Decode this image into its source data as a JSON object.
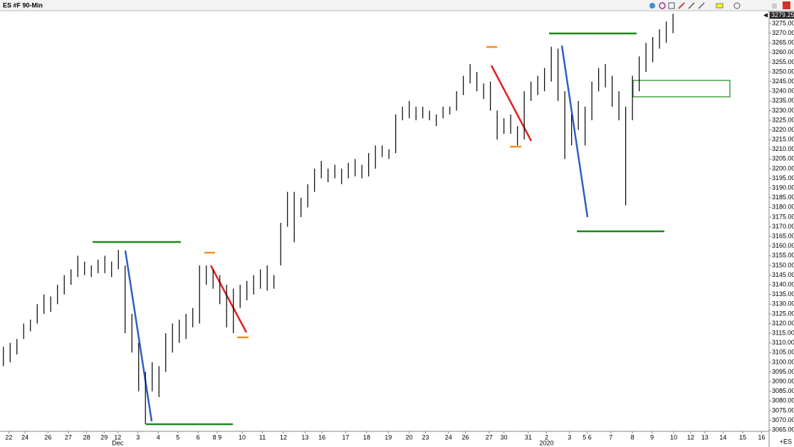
{
  "chart_data": {
    "type": "ohlc",
    "title": "ES #F 90-Min",
    "symbol_tag": "+ES",
    "color": "#000000",
    "grid": false,
    "bars": {
      "high": [
        3108,
        3110,
        3112,
        3120,
        3122,
        3130,
        3135,
        3134,
        3140,
        3145,
        3148,
        3155,
        3152,
        3150,
        3153,
        3155,
        3152,
        3158,
        3150,
        3125,
        3110,
        3095,
        3100,
        3098,
        3115,
        3120,
        3122,
        3125,
        3128,
        3150,
        3150,
        3148,
        3145,
        3140,
        3138,
        3140,
        3142,
        3145,
        3148,
        3150,
        3145,
        3172,
        3188,
        3188,
        3185,
        3192,
        3200,
        3204,
        3200,
        3202,
        3200,
        3203,
        3205,
        3202,
        3208,
        3212,
        3212,
        3210,
        3228,
        3232,
        3235,
        3232,
        3232,
        3230,
        3228,
        3232,
        3232,
        3240,
        3248,
        3254,
        3250,
        3244,
        3245,
        3230,
        3226,
        3228,
        3222,
        3240,
        3245,
        3248,
        3252,
        3263,
        3262,
        3240,
        3228,
        3235,
        3232,
        3245,
        3252,
        3254,
        3248,
        3240,
        3232,
        3248,
        3258,
        3265,
        3268,
        3272,
        3276,
        3280
      ],
      "low": [
        3098,
        3100,
        3104,
        3112,
        3116,
        3120,
        3125,
        3126,
        3130,
        3135,
        3140,
        3144,
        3145,
        3144,
        3146,
        3146,
        3144,
        3148,
        3115,
        3105,
        3085,
        3068,
        3085,
        3082,
        3095,
        3105,
        3110,
        3112,
        3118,
        3120,
        3140,
        3138,
        3130,
        3118,
        3115,
        3128,
        3132,
        3135,
        3138,
        3137,
        3138,
        3150,
        3170,
        3162,
        3175,
        3180,
        3188,
        3195,
        3193,
        3195,
        3192,
        3195,
        3196,
        3195,
        3196,
        3200,
        3206,
        3205,
        3208,
        3225,
        3226,
        3225,
        3226,
        3225,
        3222,
        3226,
        3228,
        3230,
        3238,
        3244,
        3240,
        3236,
        3230,
        3215,
        3218,
        3218,
        3212,
        3215,
        3235,
        3238,
        3240,
        3245,
        3235,
        3205,
        3212,
        3220,
        3212,
        3225,
        3240,
        3242,
        3232,
        3225,
        3181,
        3225,
        3240,
        3250,
        3255,
        3262,
        3265,
        3270
      ]
    },
    "last_price": {
      "value": 3279.25,
      "label": "3279.25"
    },
    "ylim": [
      3064.3,
      3281.25
    ],
    "yticks": [
      {
        "value": 3065,
        "label": "3065.00"
      },
      {
        "value": 3070,
        "label": "3070.00"
      },
      {
        "value": 3075,
        "label": "3075.00"
      },
      {
        "value": 3080,
        "label": "3080.00"
      },
      {
        "value": 3085,
        "label": "3085.00"
      },
      {
        "value": 3090,
        "label": "3090.00"
      },
      {
        "value": 3095,
        "label": "3095.00"
      },
      {
        "value": 3100,
        "label": "3100.00"
      },
      {
        "value": 3105,
        "label": "3105.00"
      },
      {
        "value": 3110,
        "label": "3110.00"
      },
      {
        "value": 3115,
        "label": "3115.00"
      },
      {
        "value": 3120,
        "label": "3120.00"
      },
      {
        "value": 3125,
        "label": "3125.00"
      },
      {
        "value": 3130,
        "label": "3130.00"
      },
      {
        "value": 3135,
        "label": "3135.00"
      },
      {
        "value": 3140,
        "label": "3140.00"
      },
      {
        "value": 3145,
        "label": "3145.00"
      },
      {
        "value": 3150,
        "label": "3150.00"
      },
      {
        "value": 3155,
        "label": "3155.00"
      },
      {
        "value": 3160,
        "label": "3160.00"
      },
      {
        "value": 3165,
        "label": "3165.00"
      },
      {
        "value": 3170,
        "label": "3170.00"
      },
      {
        "value": 3175,
        "label": "3175.00"
      },
      {
        "value": 3180,
        "label": "3180.00"
      },
      {
        "value": 3185,
        "label": "3185.00"
      },
      {
        "value": 3190,
        "label": "3190.00"
      },
      {
        "value": 3195,
        "label": "3195.00"
      },
      {
        "value": 3200,
        "label": "3200.00"
      },
      {
        "value": 3205,
        "label": "3205.00"
      },
      {
        "value": 3210,
        "label": "3210.00"
      },
      {
        "value": 3215,
        "label": "3215.00"
      },
      {
        "value": 3220,
        "label": "3220.00"
      },
      {
        "value": 3225,
        "label": "3225.00"
      },
      {
        "value": 3230,
        "label": "3230.00"
      },
      {
        "value": 3235,
        "label": "3235.00"
      },
      {
        "value": 3240,
        "label": "3240.00"
      },
      {
        "value": 3245,
        "label": "3245.00"
      },
      {
        "value": 3250,
        "label": "3250.00"
      },
      {
        "value": 3255,
        "label": "3255.00"
      },
      {
        "value": 3260,
        "label": "3260.00"
      },
      {
        "value": 3265,
        "label": "3265.00"
      },
      {
        "value": 3270,
        "label": "3270.00"
      },
      {
        "value": 3275,
        "label": "3275.00"
      }
    ],
    "xlim": [
      0,
      113.7
    ],
    "xticks": [
      {
        "value": 1.3,
        "label": "22"
      },
      {
        "value": 3.7,
        "label": "24"
      },
      {
        "value": 7.1,
        "label": "26"
      },
      {
        "value": 10.1,
        "label": "27"
      },
      {
        "value": 12.8,
        "label": "28"
      },
      {
        "value": 15.4,
        "label": "29"
      },
      {
        "value": 17.4,
        "label": "12"
      },
      {
        "value": 20.4,
        "label": "3"
      },
      {
        "value": 23.4,
        "label": "4"
      },
      {
        "value": 26.3,
        "label": "5"
      },
      {
        "value": 29.3,
        "label": "6"
      },
      {
        "value": 32.1,
        "label": "8 9"
      },
      {
        "value": 35.8,
        "label": "10"
      },
      {
        "value": 38.8,
        "label": "11"
      },
      {
        "value": 41.9,
        "label": "12"
      },
      {
        "value": 45.1,
        "label": "13"
      },
      {
        "value": 47.6,
        "label": "16"
      },
      {
        "value": 51.1,
        "label": "17"
      },
      {
        "value": 54.2,
        "label": "18"
      },
      {
        "value": 57.4,
        "label": "19"
      },
      {
        "value": 60.5,
        "label": "20"
      },
      {
        "value": 62.9,
        "label": "23"
      },
      {
        "value": 66.3,
        "label": "24"
      },
      {
        "value": 68.8,
        "label": "26"
      },
      {
        "value": 72.3,
        "label": "27"
      },
      {
        "value": 74.5,
        "label": "30"
      },
      {
        "value": 78.1,
        "label": "31"
      },
      {
        "value": 80.8,
        "label": "2"
      },
      {
        "value": 84.2,
        "label": "3"
      },
      {
        "value": 86.8,
        "label": "5 6"
      },
      {
        "value": 90.3,
        "label": "7"
      },
      {
        "value": 93.5,
        "label": "8"
      },
      {
        "value": 96.4,
        "label": "9"
      },
      {
        "value": 99.6,
        "label": "10"
      },
      {
        "value": 102.1,
        "label": "12"
      },
      {
        "value": 104.2,
        "label": "13"
      },
      {
        "value": 106.9,
        "label": "14"
      },
      {
        "value": 109.8,
        "label": "15"
      },
      {
        "value": 112.6,
        "label": "16"
      }
    ],
    "xticks_secondary": [
      {
        "value": 17.4,
        "label": "Dec"
      },
      {
        "value": 80.8,
        "label": "2020"
      }
    ]
  }
}
